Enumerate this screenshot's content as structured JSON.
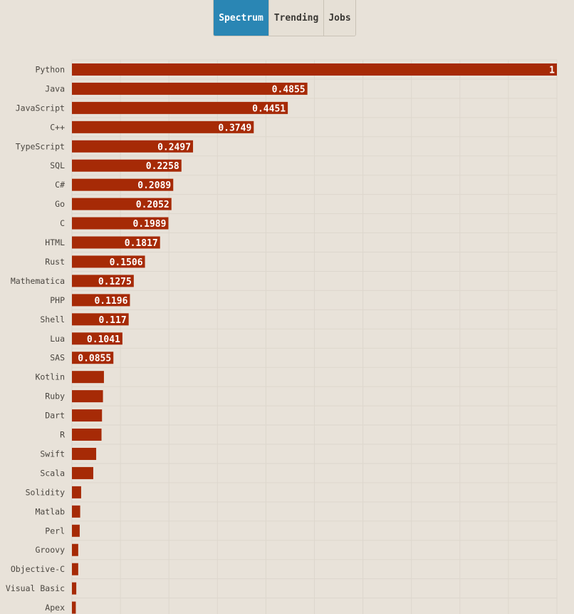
{
  "tabs": [
    {
      "label": "Spectrum",
      "active": true
    },
    {
      "label": "Trending",
      "active": false
    },
    {
      "label": "Jobs",
      "active": false
    }
  ],
  "colors": {
    "background": "#e8e2d9",
    "bar": "#a62a06",
    "active_tab": "#2a86b4",
    "grid": "#ddd7cd"
  },
  "chart_data": {
    "type": "bar",
    "orientation": "horizontal",
    "grid": true,
    "xlim": [
      0,
      1
    ],
    "categories": [
      "Python",
      "Java",
      "JavaScript",
      "C++",
      "TypeScript",
      "SQL",
      "C#",
      "Go",
      "C",
      "HTML",
      "Rust",
      "Mathematica",
      "PHP",
      "Shell",
      "Lua",
      "SAS",
      "Kotlin",
      "Ruby",
      "Dart",
      "R",
      "Swift",
      "Scala",
      "Solidity",
      "Matlab",
      "Perl",
      "Groovy",
      "Objective-C",
      "Visual Basic",
      "Apex"
    ],
    "values": [
      1,
      0.4855,
      0.4451,
      0.3749,
      0.2497,
      0.2258,
      0.2089,
      0.2052,
      0.1989,
      0.1817,
      0.1506,
      0.1275,
      0.1196,
      0.117,
      0.1041,
      0.0855,
      0.066,
      0.064,
      0.062,
      0.061,
      0.05,
      0.044,
      0.019,
      0.017,
      0.016,
      0.013,
      0.013,
      0.009,
      0.008
    ],
    "value_labels": [
      "1",
      "0.4855",
      "0.4451",
      "0.3749",
      "0.2497",
      "0.2258",
      "0.2089",
      "0.2052",
      "0.1989",
      "0.1817",
      "0.1506",
      "0.1275",
      "0.1196",
      "0.117",
      "0.1041",
      "0.0855",
      "",
      "",
      "",
      "",
      "",
      "",
      "",
      "",
      "",
      "",
      "",
      "",
      ""
    ]
  }
}
